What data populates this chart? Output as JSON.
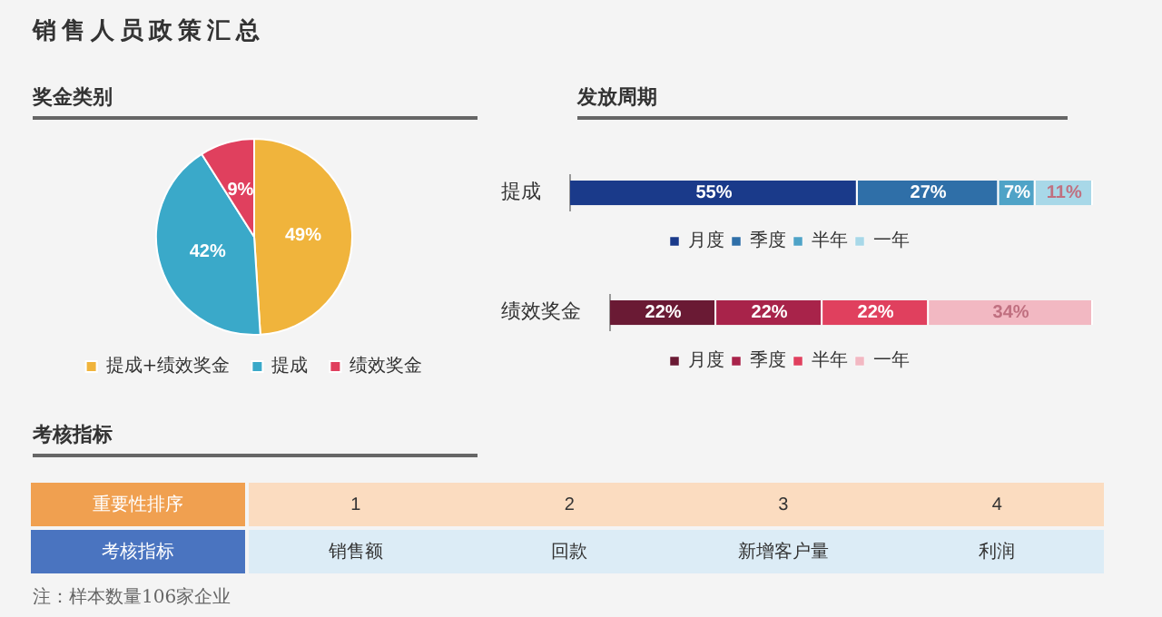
{
  "chart_data": [
    {
      "type": "pie",
      "title": "销售人员政策汇总",
      "subtitle": "奖金类别",
      "categories": [
        "提成+绩效奖金",
        "提成",
        "绩效奖金"
      ],
      "values": [
        49,
        42,
        9
      ],
      "colors": [
        "#f0b43c",
        "#3aa9c9",
        "#e0405e"
      ],
      "value_labels": [
        "49%",
        "42%",
        "9%"
      ],
      "legend": "bottom"
    },
    {
      "type": "bar",
      "title": "发放周期",
      "orientation": "horizontal",
      "stacked": true,
      "categories": [
        "提成"
      ],
      "xlim": [
        0,
        100
      ],
      "tick_labels": "y",
      "legend": "bottom",
      "series": [
        {
          "name": "月度",
          "color": "#1a3a8a",
          "values": [
            55
          ],
          "value_labels": [
            "55%"
          ]
        },
        {
          "name": "季度",
          "color": "#2f6fa8",
          "values": [
            27
          ],
          "value_labels": [
            "27%"
          ]
        },
        {
          "name": "半年",
          "color": "#4fa3c7",
          "values": [
            7
          ],
          "value_labels": [
            "7%"
          ]
        },
        {
          "name": "一年",
          "color": "#a8d8e8",
          "values": [
            11
          ],
          "value_labels": [
            "11%"
          ]
        }
      ]
    },
    {
      "type": "bar",
      "orientation": "horizontal",
      "stacked": true,
      "categories": [
        "绩效奖金"
      ],
      "xlim": [
        0,
        100
      ],
      "tick_labels": "y",
      "legend": "bottom",
      "series": [
        {
          "name": "月度",
          "color": "#6a1a34",
          "values": [
            22
          ],
          "value_labels": [
            "22%"
          ]
        },
        {
          "name": "季度",
          "color": "#a8234a",
          "values": [
            22
          ],
          "value_labels": [
            "22%"
          ]
        },
        {
          "name": "半年",
          "color": "#e0405e",
          "values": [
            22
          ],
          "value_labels": [
            "22%"
          ]
        },
        {
          "name": "一年",
          "color": "#f2b8c2",
          "values": [
            34
          ],
          "value_labels": [
            "34%"
          ]
        }
      ]
    },
    {
      "type": "other",
      "title": "考核指标",
      "y_categories": [
        "重要性排序",
        "考核指标"
      ],
      "categories": [
        "销售额",
        "回款",
        "新增客户量",
        "利润"
      ],
      "values": [
        1,
        2,
        3,
        4
      ],
      "data_labels": true,
      "annotations": [
        "注：样本数量106家企业"
      ]
    }
  ]
}
